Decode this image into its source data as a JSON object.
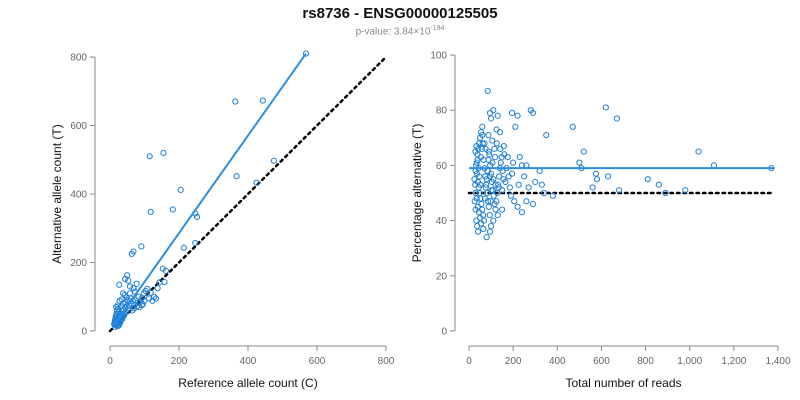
{
  "title": "rs8736 - ENSG00000125505",
  "subtitle": {
    "prefix": "p-value: 3.84×10",
    "exponent": "-194"
  },
  "chart_data": [
    {
      "type": "scatter",
      "xlabel": "Reference allele count (C)",
      "ylabel": "Alternative allele count (T)",
      "xlim": [
        0,
        800
      ],
      "ylim": [
        0,
        800
      ],
      "xticks": [
        "0",
        "200",
        "400",
        "600",
        "800"
      ],
      "yticks": [
        "0",
        "200",
        "400",
        "600",
        "800"
      ],
      "grid": false,
      "colors": {
        "points": "#1f7fd4",
        "fit": "#2b8ee0",
        "reference": "#000000"
      },
      "fit_line": {
        "x": [
          12,
          568
        ],
        "y": [
          18,
          810
        ]
      },
      "reference_line": {
        "x": [
          0,
          800
        ],
        "y": [
          0,
          800
        ],
        "style": "dotted"
      },
      "points": [
        [
          568,
          810
        ],
        [
          363,
          670
        ],
        [
          443,
          673
        ],
        [
          475,
          497
        ],
        [
          367,
          452
        ],
        [
          425,
          433
        ],
        [
          155,
          520
        ],
        [
          115,
          510
        ],
        [
          205,
          412
        ],
        [
          182,
          355
        ],
        [
          118,
          348
        ],
        [
          247,
          343
        ],
        [
          252,
          333
        ],
        [
          214,
          243
        ],
        [
          247,
          257
        ],
        [
          68,
          232
        ],
        [
          63,
          225
        ],
        [
          91,
          247
        ],
        [
          50,
          163
        ],
        [
          44,
          152
        ],
        [
          53,
          147
        ],
        [
          27,
          135
        ],
        [
          58,
          130
        ],
        [
          77,
          138
        ],
        [
          68,
          125
        ],
        [
          72,
          115
        ],
        [
          38,
          110
        ],
        [
          43,
          105
        ],
        [
          98,
          110
        ],
        [
          103,
          117
        ],
        [
          83,
          100
        ],
        [
          92,
          95
        ],
        [
          128,
          100
        ],
        [
          118,
          112
        ],
        [
          113,
          95
        ],
        [
          108,
          123
        ],
        [
          153,
          182
        ],
        [
          162,
          176
        ],
        [
          158,
          143
        ],
        [
          143,
          142
        ],
        [
          138,
          125
        ],
        [
          133,
          95
        ],
        [
          123,
          88
        ],
        [
          58,
          110
        ],
        [
          48,
          98
        ],
        [
          34,
          92
        ],
        [
          28,
          88
        ],
        [
          22,
          75
        ],
        [
          18,
          70
        ],
        [
          24,
          65
        ],
        [
          32,
          72
        ],
        [
          38,
          80
        ],
        [
          44,
          85
        ],
        [
          52,
          90
        ],
        [
          60,
          95
        ],
        [
          66,
          88
        ],
        [
          74,
          90
        ],
        [
          80,
          82
        ],
        [
          88,
          85
        ],
        [
          95,
          78
        ],
        [
          100,
          88
        ],
        [
          20,
          60
        ],
        [
          25,
          55
        ],
        [
          30,
          50
        ],
        [
          35,
          58
        ],
        [
          40,
          62
        ],
        [
          45,
          68
        ],
        [
          50,
          72
        ],
        [
          55,
          75
        ],
        [
          60,
          80
        ],
        [
          18,
          45
        ],
        [
          22,
          42
        ],
        [
          26,
          40
        ],
        [
          30,
          38
        ],
        [
          34,
          45
        ],
        [
          38,
          48
        ],
        [
          42,
          52
        ],
        [
          46,
          55
        ],
        [
          16,
          35
        ],
        [
          20,
          32
        ],
        [
          24,
          30
        ],
        [
          28,
          28
        ],
        [
          32,
          34
        ],
        [
          36,
          36
        ],
        [
          14,
          25
        ],
        [
          18,
          22
        ],
        [
          22,
          20
        ],
        [
          26,
          24
        ],
        [
          30,
          26
        ],
        [
          15,
          18
        ],
        [
          19,
          16
        ],
        [
          23,
          14
        ],
        [
          27,
          18
        ],
        [
          17,
          28
        ],
        [
          21,
          26
        ],
        [
          25,
          33
        ],
        [
          29,
          36
        ],
        [
          33,
          40
        ],
        [
          37,
          42
        ],
        [
          41,
          46
        ],
        [
          65,
          60
        ],
        [
          70,
          66
        ],
        [
          78,
          72
        ],
        [
          85,
          70
        ],
        [
          92,
          75
        ],
        [
          15,
          12
        ],
        [
          12,
          20
        ],
        [
          14,
          30
        ],
        [
          16,
          40
        ],
        [
          19,
          50
        ]
      ]
    },
    {
      "type": "scatter",
      "xlabel": "Total number of reads",
      "ylabel": "Percentage alternative (T)",
      "xlim": [
        0,
        1400
      ],
      "ylim": [
        0,
        100
      ],
      "xticks": [
        "0",
        "200",
        "400",
        "600",
        "800",
        "1,000",
        "1,200",
        "1,400"
      ],
      "yticks": [
        "0",
        "20",
        "40",
        "60",
        "80",
        "100"
      ],
      "grid": false,
      "colors": {
        "points": "#1f7fd4",
        "fit": "#2b8ee0",
        "reference": "#000000"
      },
      "fit_line": {
        "x": [
          0,
          1380
        ],
        "y": [
          59,
          59
        ]
      },
      "reference_line": {
        "x": [
          0,
          1380
        ],
        "y": [
          50,
          50
        ],
        "style": "dotted"
      },
      "points": [
        [
          85,
          87
        ],
        [
          620,
          81
        ],
        [
          280,
          80
        ],
        [
          290,
          79
        ],
        [
          670,
          77
        ],
        [
          95,
          79
        ],
        [
          100,
          77
        ],
        [
          110,
          80
        ],
        [
          130,
          78
        ],
        [
          195,
          79
        ],
        [
          220,
          78
        ],
        [
          210,
          74
        ],
        [
          470,
          74
        ],
        [
          125,
          73
        ],
        [
          140,
          72
        ],
        [
          88,
          71
        ],
        [
          350,
          71
        ],
        [
          60,
          71
        ],
        [
          70,
          68
        ],
        [
          75,
          66
        ],
        [
          90,
          65
        ],
        [
          105,
          69
        ],
        [
          115,
          66
        ],
        [
          160,
          64
        ],
        [
          175,
          63
        ],
        [
          200,
          61
        ],
        [
          230,
          63
        ],
        [
          240,
          60
        ],
        [
          260,
          60
        ],
        [
          320,
          58
        ],
        [
          520,
          65
        ],
        [
          500,
          61
        ],
        [
          510,
          59
        ],
        [
          575,
          57
        ],
        [
          580,
          55
        ],
        [
          560,
          52
        ],
        [
          630,
          56
        ],
        [
          810,
          55
        ],
        [
          860,
          53
        ],
        [
          680,
          51
        ],
        [
          1040,
          65
        ],
        [
          1110,
          60
        ],
        [
          1370,
          59
        ],
        [
          980,
          51
        ],
        [
          890,
          50
        ],
        [
          85,
          58
        ],
        [
          95,
          56
        ],
        [
          110,
          55
        ],
        [
          120,
          53
        ],
        [
          135,
          52
        ],
        [
          150,
          51
        ],
        [
          165,
          54
        ],
        [
          180,
          56
        ],
        [
          190,
          49
        ],
        [
          205,
          47
        ],
        [
          220,
          45
        ],
        [
          240,
          43
        ],
        [
          260,
          47
        ],
        [
          290,
          46
        ],
        [
          150,
          44
        ],
        [
          130,
          42
        ],
        [
          110,
          40
        ],
        [
          100,
          38
        ],
        [
          95,
          36
        ],
        [
          80,
          34
        ],
        [
          65,
          37
        ],
        [
          55,
          39
        ],
        [
          50,
          41
        ],
        [
          45,
          43
        ],
        [
          40,
          45
        ],
        [
          35,
          48
        ],
        [
          30,
          50
        ],
        [
          28,
          53
        ],
        [
          25,
          55
        ],
        [
          30,
          58
        ],
        [
          35,
          61
        ],
        [
          38,
          64
        ],
        [
          42,
          66
        ],
        [
          46,
          68
        ],
        [
          50,
          70
        ],
        [
          55,
          72
        ],
        [
          60,
          74
        ],
        [
          32,
          60
        ],
        [
          36,
          57
        ],
        [
          40,
          54
        ],
        [
          44,
          52
        ],
        [
          48,
          50
        ],
        [
          52,
          48
        ],
        [
          56,
          46
        ],
        [
          60,
          44
        ],
        [
          64,
          42
        ],
        [
          68,
          40
        ],
        [
          72,
          48
        ],
        [
          76,
          52
        ],
        [
          80,
          55
        ],
        [
          84,
          58
        ],
        [
          88,
          62
        ],
        [
          92,
          64
        ],
        [
          96,
          60
        ],
        [
          100,
          57
        ],
        [
          104,
          54
        ],
        [
          108,
          51
        ],
        [
          112,
          49
        ],
        [
          116,
          46
        ],
        [
          120,
          44
        ],
        [
          124,
          47
        ],
        [
          128,
          50
        ],
        [
          132,
          53
        ],
        [
          136,
          56
        ],
        [
          140,
          59
        ],
        [
          144,
          61
        ],
        [
          148,
          63
        ],
        [
          152,
          58
        ],
        [
          156,
          55
        ],
        [
          170,
          59
        ],
        [
          185,
          52
        ],
        [
          195,
          57
        ],
        [
          225,
          53
        ],
        [
          250,
          56
        ],
        [
          270,
          52
        ],
        [
          300,
          54
        ],
        [
          330,
          53
        ],
        [
          340,
          50
        ],
        [
          380,
          49
        ],
        [
          30,
          44
        ],
        [
          33,
          40
        ],
        [
          37,
          38
        ],
        [
          41,
          36
        ],
        [
          26,
          47
        ],
        [
          29,
          65
        ],
        [
          34,
          67
        ],
        [
          39,
          62
        ],
        [
          43,
          59
        ],
        [
          47,
          56
        ],
        [
          51,
          53
        ],
        [
          54,
          63
        ],
        [
          58,
          66
        ],
        [
          62,
          68
        ],
        [
          66,
          62
        ],
        [
          70,
          59
        ],
        [
          74,
          56
        ],
        [
          78,
          53
        ],
        [
          82,
          50
        ],
        [
          86,
          47
        ],
        [
          90,
          45
        ],
        [
          94,
          42
        ],
        [
          98,
          47
        ],
        [
          102,
          51
        ],
        [
          106,
          61
        ],
        [
          118,
          63
        ],
        [
          126,
          68
        ],
        [
          142,
          66
        ],
        [
          158,
          67
        ]
      ]
    }
  ]
}
